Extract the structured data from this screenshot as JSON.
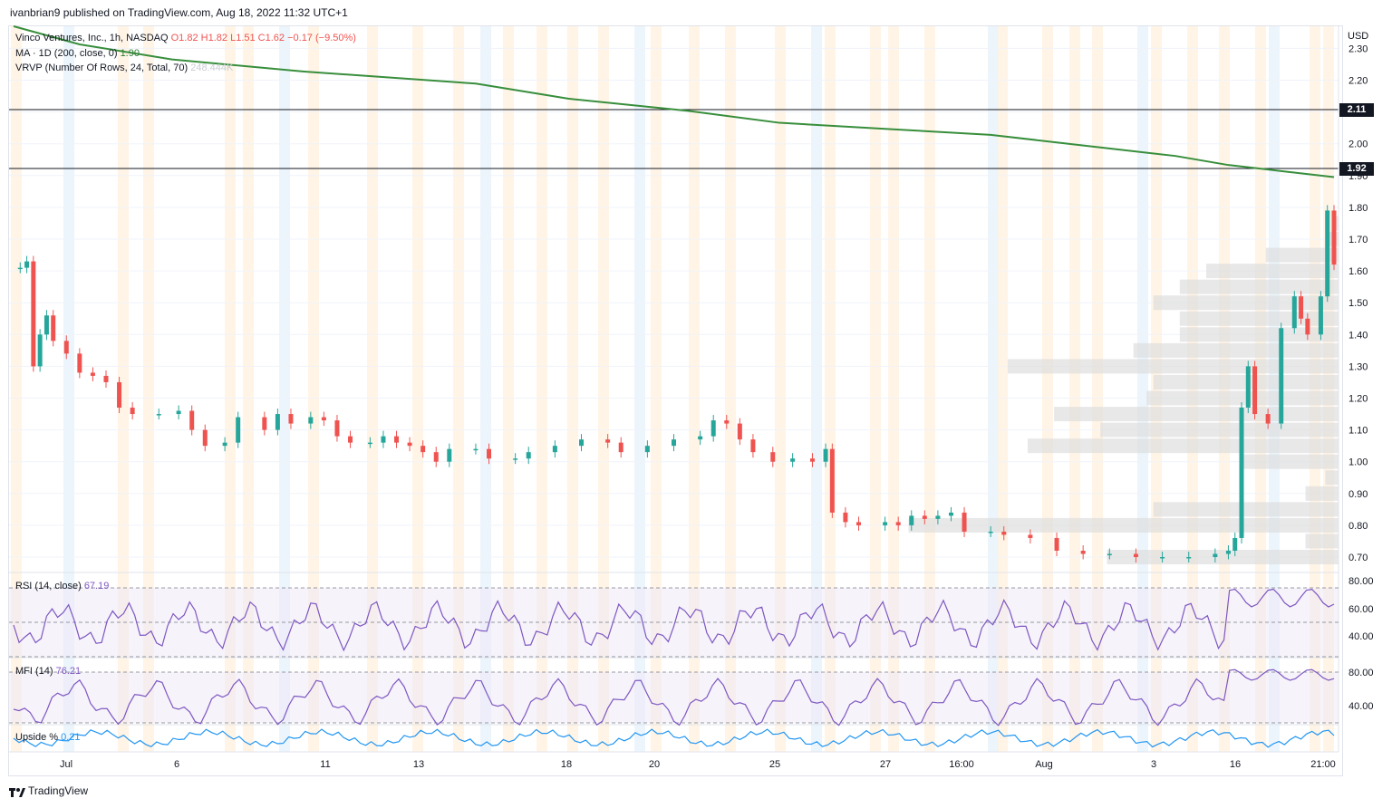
{
  "header": {
    "published_text": "ivanbrian9 published on TradingView.com, Aug 18, 2022 11:32 UTC+1"
  },
  "legend": {
    "symbol": "Vinco Ventures, Inc., 1h, NASDAQ",
    "o": "O1.82",
    "h": "H1.82",
    "l": "L1.51",
    "c": "C1.62",
    "change": "−0.17 (−9.50%)",
    "ma_label": "MA · 1D (200, close, 0)",
    "ma_value": "1.90",
    "vrvp_label": "VRVP (Number Of Rows, 24, Total, 70)",
    "vrvp_value": "248.444K"
  },
  "indicators": {
    "rsi_label": "RSI (14, close)",
    "rsi_value": "67.19",
    "mfi_label": "MFI (14)",
    "mfi_value": "76.21",
    "upside_label": "Upside %",
    "upside_value": "0.21"
  },
  "footer": {
    "logo_text": "TradingView"
  },
  "colors": {
    "up": "#26a69a",
    "down": "#ef5350",
    "ma": "#388e3c",
    "rsi": "#7e57c2",
    "upside": "#2196f3",
    "vrvp": "#dcdcdc",
    "session_orange": "#fff0de",
    "session_blue": "#e6f1fb"
  },
  "chart_data": {
    "type": "candlestick",
    "currency": "USD",
    "price_ticks": [
      "2.30",
      "2.20",
      "2.10",
      "2.00",
      "1.90",
      "1.80",
      "1.70",
      "1.60",
      "1.50",
      "1.40",
      "1.30",
      "1.20",
      "1.10",
      "1.00",
      "0.90",
      "0.80",
      "0.70"
    ],
    "x_tick_labels": [
      "Jul",
      "6",
      "11",
      "13",
      "18",
      "20",
      "25",
      "27",
      "16:00",
      "Aug",
      "3",
      "16",
      "21:00"
    ],
    "horizontal_levels": [
      {
        "label": "2.11",
        "value": 2.11
      },
      {
        "label": "1.92",
        "value": 1.92
      }
    ],
    "ma_200_points": [
      [
        0,
        2.4
      ],
      [
        0.05,
        2.34
      ],
      [
        0.12,
        2.29
      ],
      [
        0.22,
        2.25
      ],
      [
        0.35,
        2.21
      ],
      [
        0.42,
        2.16
      ],
      [
        0.51,
        2.12
      ],
      [
        0.58,
        2.08
      ],
      [
        0.66,
        2.06
      ],
      [
        0.74,
        2.04
      ],
      [
        0.82,
        2.0
      ],
      [
        0.88,
        1.97
      ],
      [
        0.92,
        1.94
      ],
      [
        0.96,
        1.92
      ],
      [
        1.0,
        1.9
      ]
    ],
    "close_path": [
      [
        0.005,
        1.61
      ],
      [
        0.01,
        1.63
      ],
      [
        0.015,
        1.3
      ],
      [
        0.02,
        1.4
      ],
      [
        0.025,
        1.46
      ],
      [
        0.03,
        1.38
      ],
      [
        0.04,
        1.34
      ],
      [
        0.05,
        1.28
      ],
      [
        0.06,
        1.27
      ],
      [
        0.07,
        1.25
      ],
      [
        0.08,
        1.17
      ],
      [
        0.09,
        1.15
      ],
      [
        0.11,
        1.15
      ],
      [
        0.125,
        1.16
      ],
      [
        0.135,
        1.1
      ],
      [
        0.145,
        1.05
      ],
      [
        0.16,
        1.06
      ],
      [
        0.17,
        1.14
      ],
      [
        0.19,
        1.1
      ],
      [
        0.2,
        1.15
      ],
      [
        0.21,
        1.12
      ],
      [
        0.225,
        1.14
      ],
      [
        0.235,
        1.13
      ],
      [
        0.245,
        1.08
      ],
      [
        0.255,
        1.06
      ],
      [
        0.27,
        1.06
      ],
      [
        0.28,
        1.08
      ],
      [
        0.29,
        1.06
      ],
      [
        0.3,
        1.05
      ],
      [
        0.31,
        1.03
      ],
      [
        0.32,
        1.0
      ],
      [
        0.33,
        1.04
      ],
      [
        0.35,
        1.04
      ],
      [
        0.36,
        1.01
      ],
      [
        0.38,
        1.01
      ],
      [
        0.39,
        1.03
      ],
      [
        0.41,
        1.05
      ],
      [
        0.43,
        1.07
      ],
      [
        0.45,
        1.06
      ],
      [
        0.46,
        1.03
      ],
      [
        0.48,
        1.05
      ],
      [
        0.5,
        1.07
      ],
      [
        0.52,
        1.08
      ],
      [
        0.53,
        1.13
      ],
      [
        0.54,
        1.12
      ],
      [
        0.55,
        1.07
      ],
      [
        0.56,
        1.03
      ],
      [
        0.575,
        1.0
      ],
      [
        0.59,
        1.01
      ],
      [
        0.605,
        1.0
      ],
      [
        0.615,
        1.04
      ],
      [
        0.62,
        0.84
      ],
      [
        0.63,
        0.81
      ],
      [
        0.64,
        0.8
      ],
      [
        0.66,
        0.81
      ],
      [
        0.67,
        0.8
      ],
      [
        0.68,
        0.83
      ],
      [
        0.69,
        0.82
      ],
      [
        0.7,
        0.83
      ],
      [
        0.71,
        0.84
      ],
      [
        0.72,
        0.78
      ],
      [
        0.74,
        0.78
      ],
      [
        0.75,
        0.77
      ],
      [
        0.77,
        0.76
      ],
      [
        0.79,
        0.72
      ],
      [
        0.81,
        0.71
      ],
      [
        0.83,
        0.71
      ],
      [
        0.85,
        0.7
      ],
      [
        0.87,
        0.7
      ],
      [
        0.89,
        0.7
      ],
      [
        0.91,
        0.71
      ],
      [
        0.92,
        0.72
      ],
      [
        0.925,
        0.76
      ],
      [
        0.93,
        1.17
      ],
      [
        0.935,
        1.3
      ],
      [
        0.94,
        1.15
      ],
      [
        0.95,
        1.12
      ],
      [
        0.96,
        1.42
      ],
      [
        0.97,
        1.52
      ],
      [
        0.975,
        1.45
      ],
      [
        0.98,
        1.4
      ],
      [
        0.99,
        1.52
      ],
      [
        0.995,
        1.79
      ],
      [
        1.0,
        1.62
      ]
    ],
    "vrvp_rows": [
      {
        "price": 0.7,
        "volume": 0.35
      },
      {
        "price": 0.75,
        "volume": 0.05
      },
      {
        "price": 0.8,
        "volume": 0.65
      },
      {
        "price": 0.85,
        "volume": 0.28
      },
      {
        "price": 0.9,
        "volume": 0.05
      },
      {
        "price": 0.95,
        "volume": 0.02
      },
      {
        "price": 1.0,
        "volume": 0.15
      },
      {
        "price": 1.05,
        "volume": 0.47
      },
      {
        "price": 1.1,
        "volume": 0.36
      },
      {
        "price": 1.15,
        "volume": 0.43
      },
      {
        "price": 1.2,
        "volume": 0.29
      },
      {
        "price": 1.25,
        "volume": 0.28
      },
      {
        "price": 1.3,
        "volume": 0.5
      },
      {
        "price": 1.35,
        "volume": 0.31
      },
      {
        "price": 1.4,
        "volume": 0.24
      },
      {
        "price": 1.45,
        "volume": 0.24
      },
      {
        "price": 1.5,
        "volume": 0.28
      },
      {
        "price": 1.55,
        "volume": 0.24
      },
      {
        "price": 1.6,
        "volume": 0.2
      },
      {
        "price": 1.65,
        "volume": 0.11
      },
      {
        "price": 1.7,
        "volume": 0.02
      },
      {
        "price": 1.75,
        "volume": 0.01
      }
    ],
    "rsi_ticks": [
      "80.00",
      "60.00",
      "40.00"
    ],
    "mfi_ticks": [
      "80.00",
      "40.00"
    ]
  }
}
